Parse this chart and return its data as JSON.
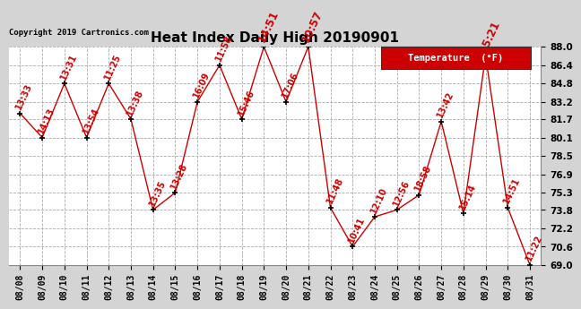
{
  "title": "Heat Index Daily High 20190901",
  "copyright": "Copyright 2019 Cartronics.com",
  "legend_label": "Temperature  (°F)",
  "dates": [
    "08/08",
    "08/09",
    "08/10",
    "08/11",
    "08/12",
    "08/13",
    "08/14",
    "08/15",
    "08/16",
    "08/17",
    "08/18",
    "08/19",
    "08/20",
    "08/21",
    "08/22",
    "08/23",
    "08/24",
    "08/25",
    "08/26",
    "08/27",
    "08/28",
    "08/29",
    "08/30",
    "08/31"
  ],
  "values": [
    82.2,
    80.1,
    84.8,
    80.1,
    84.8,
    81.7,
    73.8,
    75.3,
    83.2,
    86.4,
    81.7,
    88.0,
    83.2,
    88.0,
    74.0,
    70.6,
    73.2,
    73.8,
    75.1,
    81.5,
    73.5,
    87.2,
    74.0,
    69.0
  ],
  "labels": [
    "13:33",
    "14:13",
    "13:31",
    "13:54",
    "11:25",
    "13:38",
    "13:35",
    "13:28",
    "16:09",
    "11:58",
    "15:46",
    "14:51",
    "17:06",
    "10:57",
    "11:48",
    "10:41",
    "12:10",
    "12:56",
    "18:58",
    "13:42",
    "15:14",
    "15:21",
    "14:51",
    "11:22"
  ],
  "ylim": [
    69.0,
    88.0
  ],
  "yticks": [
    69.0,
    70.6,
    72.2,
    73.8,
    75.3,
    76.9,
    78.5,
    80.1,
    81.7,
    83.2,
    84.8,
    86.4,
    88.0
  ],
  "line_color": "#cc0000",
  "marker_color": "#000000",
  "label_color": "#cc0000",
  "highlight_indices": [
    11,
    13,
    21
  ],
  "bg_color": "#d4d4d4",
  "plot_bg_color": "#ffffff",
  "grid_color": "#aaaaaa",
  "title_fontsize": 11,
  "label_fontsize": 7,
  "highlight_fontsize": 8.5
}
